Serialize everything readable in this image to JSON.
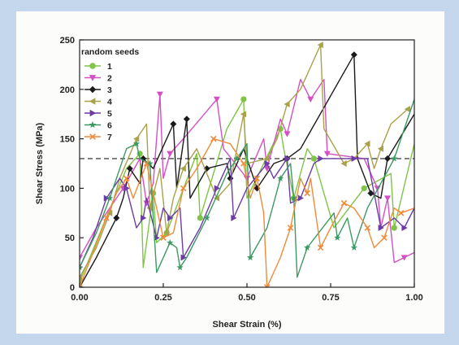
{
  "chart_data": {
    "type": "line",
    "xlabel": "Shear Strain (%)",
    "ylabel": "Shear Stress (MPa)",
    "xlim": [
      0,
      1
    ],
    "ylim": [
      0,
      250
    ],
    "xticks": [
      "0.00",
      "0.25",
      "0.50",
      "0.75",
      "1.00"
    ],
    "yticks": [
      "0",
      "50",
      "100",
      "150",
      "200",
      "250"
    ],
    "legend_title": "random seeds",
    "legend_position": "top-left",
    "reference_line": {
      "y": 130,
      "style": "dashed"
    },
    "series": [
      {
        "name": "1",
        "color": "#7ec545",
        "marker": "circle",
        "points": [
          [
            0,
            5
          ],
          [
            0.14,
            120
          ],
          [
            0.18,
            135
          ],
          [
            0.19,
            20
          ],
          [
            0.22,
            95
          ],
          [
            0.23,
            45
          ],
          [
            0.26,
            55
          ],
          [
            0.35,
            135
          ],
          [
            0.36,
            70
          ],
          [
            0.44,
            160
          ],
          [
            0.49,
            190
          ],
          [
            0.5,
            90
          ],
          [
            0.6,
            160
          ],
          [
            0.61,
            140
          ],
          [
            0.64,
            90
          ],
          [
            0.68,
            140
          ],
          [
            0.7,
            130
          ],
          [
            0.76,
            60
          ],
          [
            0.85,
            100
          ],
          [
            0.93,
            115
          ],
          [
            0.94,
            60
          ],
          [
            1.0,
            145
          ]
        ]
      },
      {
        "name": "2",
        "color": "#d54fc4",
        "marker": "triangle-down",
        "points": [
          [
            0,
            30
          ],
          [
            0.05,
            60
          ],
          [
            0.13,
            100
          ],
          [
            0.18,
            130
          ],
          [
            0.2,
            85
          ],
          [
            0.22,
            105
          ],
          [
            0.24,
            195
          ],
          [
            0.25,
            110
          ],
          [
            0.27,
            135
          ],
          [
            0.31,
            150
          ],
          [
            0.41,
            190
          ],
          [
            0.43,
            140
          ],
          [
            0.5,
            110
          ],
          [
            0.55,
            150
          ],
          [
            0.56,
            120
          ],
          [
            0.6,
            170
          ],
          [
            0.62,
            155
          ],
          [
            0.66,
            210
          ],
          [
            0.69,
            190
          ],
          [
            0.73,
            210
          ],
          [
            0.74,
            135
          ],
          [
            0.85,
            130
          ],
          [
            0.89,
            100
          ],
          [
            0.9,
            60
          ],
          [
            0.92,
            90
          ],
          [
            0.94,
            25
          ],
          [
            0.97,
            30
          ],
          [
            1.0,
            35
          ]
        ]
      },
      {
        "name": "3",
        "color": "#1a1a1a",
        "marker": "diamond",
        "points": [
          [
            0,
            0
          ],
          [
            0.05,
            30
          ],
          [
            0.11,
            70
          ],
          [
            0.13,
            90
          ],
          [
            0.15,
            120
          ],
          [
            0.18,
            105
          ],
          [
            0.19,
            130
          ],
          [
            0.22,
            120
          ],
          [
            0.28,
            165
          ],
          [
            0.29,
            100
          ],
          [
            0.32,
            170
          ],
          [
            0.33,
            90
          ],
          [
            0.38,
            120
          ],
          [
            0.44,
            125
          ],
          [
            0.45,
            110
          ],
          [
            0.49,
            140
          ],
          [
            0.53,
            100
          ],
          [
            0.58,
            125
          ],
          [
            0.62,
            130
          ],
          [
            0.66,
            140
          ],
          [
            0.82,
            235
          ],
          [
            0.83,
            130
          ],
          [
            0.87,
            95
          ],
          [
            0.9,
            90
          ],
          [
            0.92,
            130
          ],
          [
            1.0,
            175
          ]
        ]
      },
      {
        "name": "4",
        "color": "#a8a24c",
        "marker": "triangle-left",
        "points": [
          [
            0,
            10
          ],
          [
            0.05,
            40
          ],
          [
            0.09,
            75
          ],
          [
            0.12,
            110
          ],
          [
            0.17,
            150
          ],
          [
            0.2,
            165
          ],
          [
            0.21,
            80
          ],
          [
            0.24,
            120
          ],
          [
            0.26,
            55
          ],
          [
            0.28,
            90
          ],
          [
            0.31,
            120
          ],
          [
            0.35,
            140
          ],
          [
            0.41,
            90
          ],
          [
            0.45,
            105
          ],
          [
            0.49,
            175
          ],
          [
            0.5,
            125
          ],
          [
            0.56,
            130
          ],
          [
            0.59,
            150
          ],
          [
            0.62,
            185
          ],
          [
            0.66,
            200
          ],
          [
            0.72,
            245
          ],
          [
            0.73,
            160
          ],
          [
            0.79,
            125
          ],
          [
            0.82,
            130
          ],
          [
            0.86,
            145
          ],
          [
            0.88,
            120
          ],
          [
            0.9,
            140
          ],
          [
            0.93,
            165
          ],
          [
            0.98,
            180
          ]
        ]
      },
      {
        "name": "5",
        "color": "#6b3da5",
        "marker": "triangle-right",
        "points": [
          [
            0,
            20
          ],
          [
            0.04,
            50
          ],
          [
            0.08,
            90
          ],
          [
            0.12,
            110
          ],
          [
            0.14,
            100
          ],
          [
            0.17,
            60
          ],
          [
            0.19,
            70
          ],
          [
            0.2,
            90
          ],
          [
            0.23,
            50
          ],
          [
            0.25,
            80
          ],
          [
            0.27,
            70
          ],
          [
            0.3,
            80
          ],
          [
            0.31,
            30
          ],
          [
            0.36,
            60
          ],
          [
            0.41,
            100
          ],
          [
            0.45,
            130
          ],
          [
            0.46,
            70
          ],
          [
            0.5,
            100
          ],
          [
            0.56,
            125
          ],
          [
            0.58,
            110
          ],
          [
            0.62,
            130
          ],
          [
            0.63,
            85
          ],
          [
            0.66,
            90
          ],
          [
            0.7,
            125
          ],
          [
            0.72,
            130
          ],
          [
            0.8,
            130
          ],
          [
            0.82,
            130
          ],
          [
            0.86,
            130
          ],
          [
            0.9,
            60
          ],
          [
            0.94,
            70
          ],
          [
            0.97,
            60
          ],
          [
            1.0,
            80
          ]
        ]
      },
      {
        "name": "6",
        "color": "#3b9a62",
        "marker": "star",
        "points": [
          [
            0,
            20
          ],
          [
            0.05,
            55
          ],
          [
            0.09,
            90
          ],
          [
            0.14,
            140
          ],
          [
            0.17,
            145
          ],
          [
            0.18,
            130
          ],
          [
            0.21,
            125
          ],
          [
            0.23,
            15
          ],
          [
            0.27,
            45
          ],
          [
            0.29,
            40
          ],
          [
            0.3,
            20
          ],
          [
            0.32,
            30
          ],
          [
            0.38,
            70
          ],
          [
            0.44,
            115
          ],
          [
            0.47,
            130
          ],
          [
            0.5,
            145
          ],
          [
            0.51,
            30
          ],
          [
            0.56,
            60
          ],
          [
            0.6,
            110
          ],
          [
            0.63,
            125
          ],
          [
            0.64,
            90
          ],
          [
            0.65,
            10
          ],
          [
            0.68,
            40
          ],
          [
            0.76,
            75
          ],
          [
            0.77,
            50
          ],
          [
            0.8,
            70
          ],
          [
            0.82,
            40
          ],
          [
            0.86,
            80
          ],
          [
            0.94,
            130
          ],
          [
            1.0,
            190
          ]
        ]
      },
      {
        "name": "7",
        "color": "#f08a3a",
        "marker": "cross",
        "points": [
          [
            0,
            0
          ],
          [
            0.04,
            35
          ],
          [
            0.08,
            70
          ],
          [
            0.11,
            95
          ],
          [
            0.14,
            110
          ],
          [
            0.16,
            90
          ],
          [
            0.2,
            125
          ],
          [
            0.23,
            80
          ],
          [
            0.25,
            50
          ],
          [
            0.28,
            55
          ],
          [
            0.31,
            100
          ],
          [
            0.35,
            120
          ],
          [
            0.4,
            150
          ],
          [
            0.45,
            145
          ],
          [
            0.49,
            125
          ],
          [
            0.51,
            90
          ],
          [
            0.53,
            110
          ],
          [
            0.55,
            75
          ],
          [
            0.56,
            0
          ],
          [
            0.6,
            30
          ],
          [
            0.63,
            60
          ],
          [
            0.66,
            110
          ],
          [
            0.68,
            95
          ],
          [
            0.69,
            110
          ],
          [
            0.72,
            40
          ],
          [
            0.75,
            60
          ],
          [
            0.79,
            85
          ],
          [
            0.82,
            80
          ],
          [
            0.86,
            60
          ],
          [
            0.88,
            40
          ],
          [
            0.91,
            50
          ],
          [
            0.94,
            80
          ],
          [
            0.96,
            75
          ],
          [
            1.0,
            80
          ]
        ]
      }
    ]
  }
}
